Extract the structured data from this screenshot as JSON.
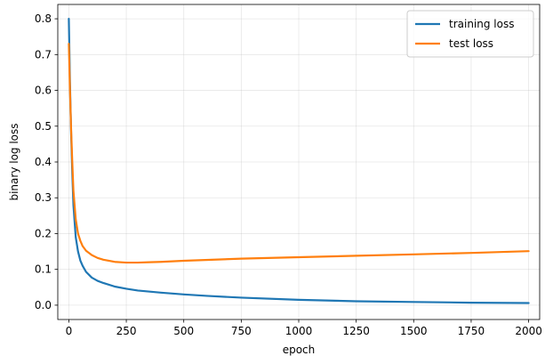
{
  "chart_data": {
    "type": "line",
    "xlabel": "epoch",
    "ylabel": "binary log loss",
    "xlim": [
      -48,
      2048
    ],
    "ylim": [
      -0.04,
      0.84
    ],
    "xticks": [
      0,
      250,
      500,
      750,
      1000,
      1250,
      1500,
      1750,
      2000
    ],
    "xtick_labels": [
      "0",
      "250",
      "500",
      "750",
      "1000",
      "1250",
      "1500",
      "1750",
      "2000"
    ],
    "yticks": [
      0.0,
      0.1,
      0.2,
      0.3,
      0.4,
      0.5,
      0.6,
      0.7,
      0.8
    ],
    "ytick_labels": [
      "0.0",
      "0.1",
      "0.2",
      "0.3",
      "0.4",
      "0.5",
      "0.6",
      "0.7",
      "0.8"
    ],
    "grid": true,
    "legend_position": "top-right",
    "series": [
      {
        "name": "training loss",
        "color": "#1f77b4",
        "x": [
          0,
          5,
          10,
          15,
          20,
          30,
          40,
          50,
          60,
          75,
          100,
          125,
          150,
          200,
          250,
          300,
          400,
          500,
          600,
          750,
          1000,
          1250,
          1500,
          1750,
          2000
        ],
        "y": [
          0.8,
          0.62,
          0.48,
          0.37,
          0.28,
          0.19,
          0.15,
          0.125,
          0.11,
          0.093,
          0.077,
          0.068,
          0.062,
          0.052,
          0.046,
          0.041,
          0.035,
          0.03,
          0.026,
          0.021,
          0.015,
          0.011,
          0.009,
          0.007,
          0.006
        ]
      },
      {
        "name": "test loss",
        "color": "#ff7f0e",
        "x": [
          0,
          5,
          10,
          15,
          20,
          30,
          40,
          50,
          60,
          75,
          100,
          125,
          150,
          200,
          250,
          300,
          350,
          400,
          500,
          750,
          1000,
          1250,
          1500,
          1750,
          2000
        ],
        "y": [
          0.73,
          0.6,
          0.49,
          0.4,
          0.32,
          0.24,
          0.2,
          0.18,
          0.165,
          0.152,
          0.14,
          0.132,
          0.127,
          0.121,
          0.119,
          0.119,
          0.12,
          0.121,
          0.124,
          0.13,
          0.134,
          0.138,
          0.142,
          0.146,
          0.151
        ]
      }
    ]
  }
}
